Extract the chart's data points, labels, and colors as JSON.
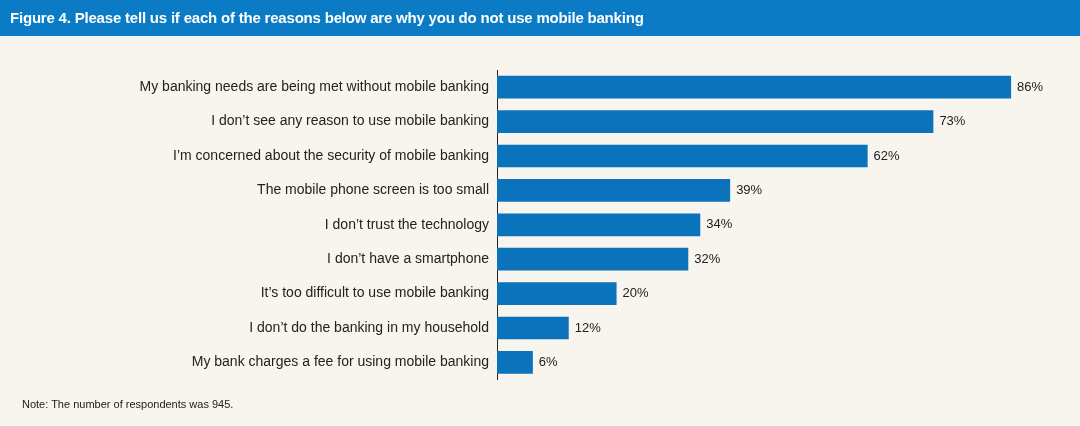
{
  "chart_data": {
    "type": "bar",
    "orientation": "horizontal",
    "title": "Figure 4. Please tell us if each of the reasons below are why you do not use mobile banking",
    "categories": [
      "My banking needs are being met without mobile banking",
      "I don’t see any reason to use mobile banking",
      "I’m concerned about the security of mobile banking",
      "The mobile phone screen is too small",
      "I don’t trust the technology",
      "I don’t have a smartphone",
      "It’s too difficult to use mobile banking",
      "I don’t do the banking in my household",
      "My bank charges a fee for using mobile banking"
    ],
    "values": [
      86,
      73,
      62,
      39,
      34,
      32,
      20,
      12,
      6
    ],
    "value_labels": [
      "86%",
      "73%",
      "62%",
      "39%",
      "34%",
      "32%",
      "20%",
      "12%",
      "6%"
    ],
    "color": "#0b72bc",
    "tick_labels": "y",
    "annotations": [
      "Note: The number of respondents was 945."
    ]
  }
}
